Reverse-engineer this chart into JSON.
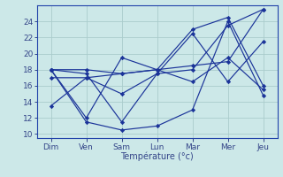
{
  "background_color": "#cce8e8",
  "grid_color": "#aacccc",
  "line_color": "#1a3399",
  "marker_color": "#1a3399",
  "days": [
    "Dim",
    "Ven",
    "Sam",
    "Lun",
    "Mar",
    "Mer",
    "Jeu"
  ],
  "day_positions": [
    0,
    1,
    2,
    3,
    4,
    5,
    6
  ],
  "xlabel": "Température (°c)",
  "ylim": [
    9.5,
    26.0
  ],
  "yticks": [
    10,
    12,
    14,
    16,
    18,
    20,
    22,
    24
  ],
  "series": [
    [
      13.5,
      17.0,
      17.5,
      18.0,
      18.5,
      19.0,
      25.5
    ],
    [
      18.0,
      18.0,
      17.5,
      18.0,
      16.5,
      19.5,
      15.5
    ],
    [
      18.0,
      11.5,
      10.5,
      11.0,
      13.0,
      24.0,
      14.8
    ],
    [
      18.0,
      17.5,
      11.5,
      17.5,
      22.5,
      16.5,
      21.5
    ],
    [
      18.0,
      12.0,
      19.5,
      18.0,
      23.0,
      24.5,
      16.0
    ],
    [
      17.0,
      17.0,
      15.0,
      17.5,
      18.0,
      23.5,
      25.5
    ]
  ],
  "figsize": [
    3.2,
    2.0
  ],
  "dpi": 100
}
